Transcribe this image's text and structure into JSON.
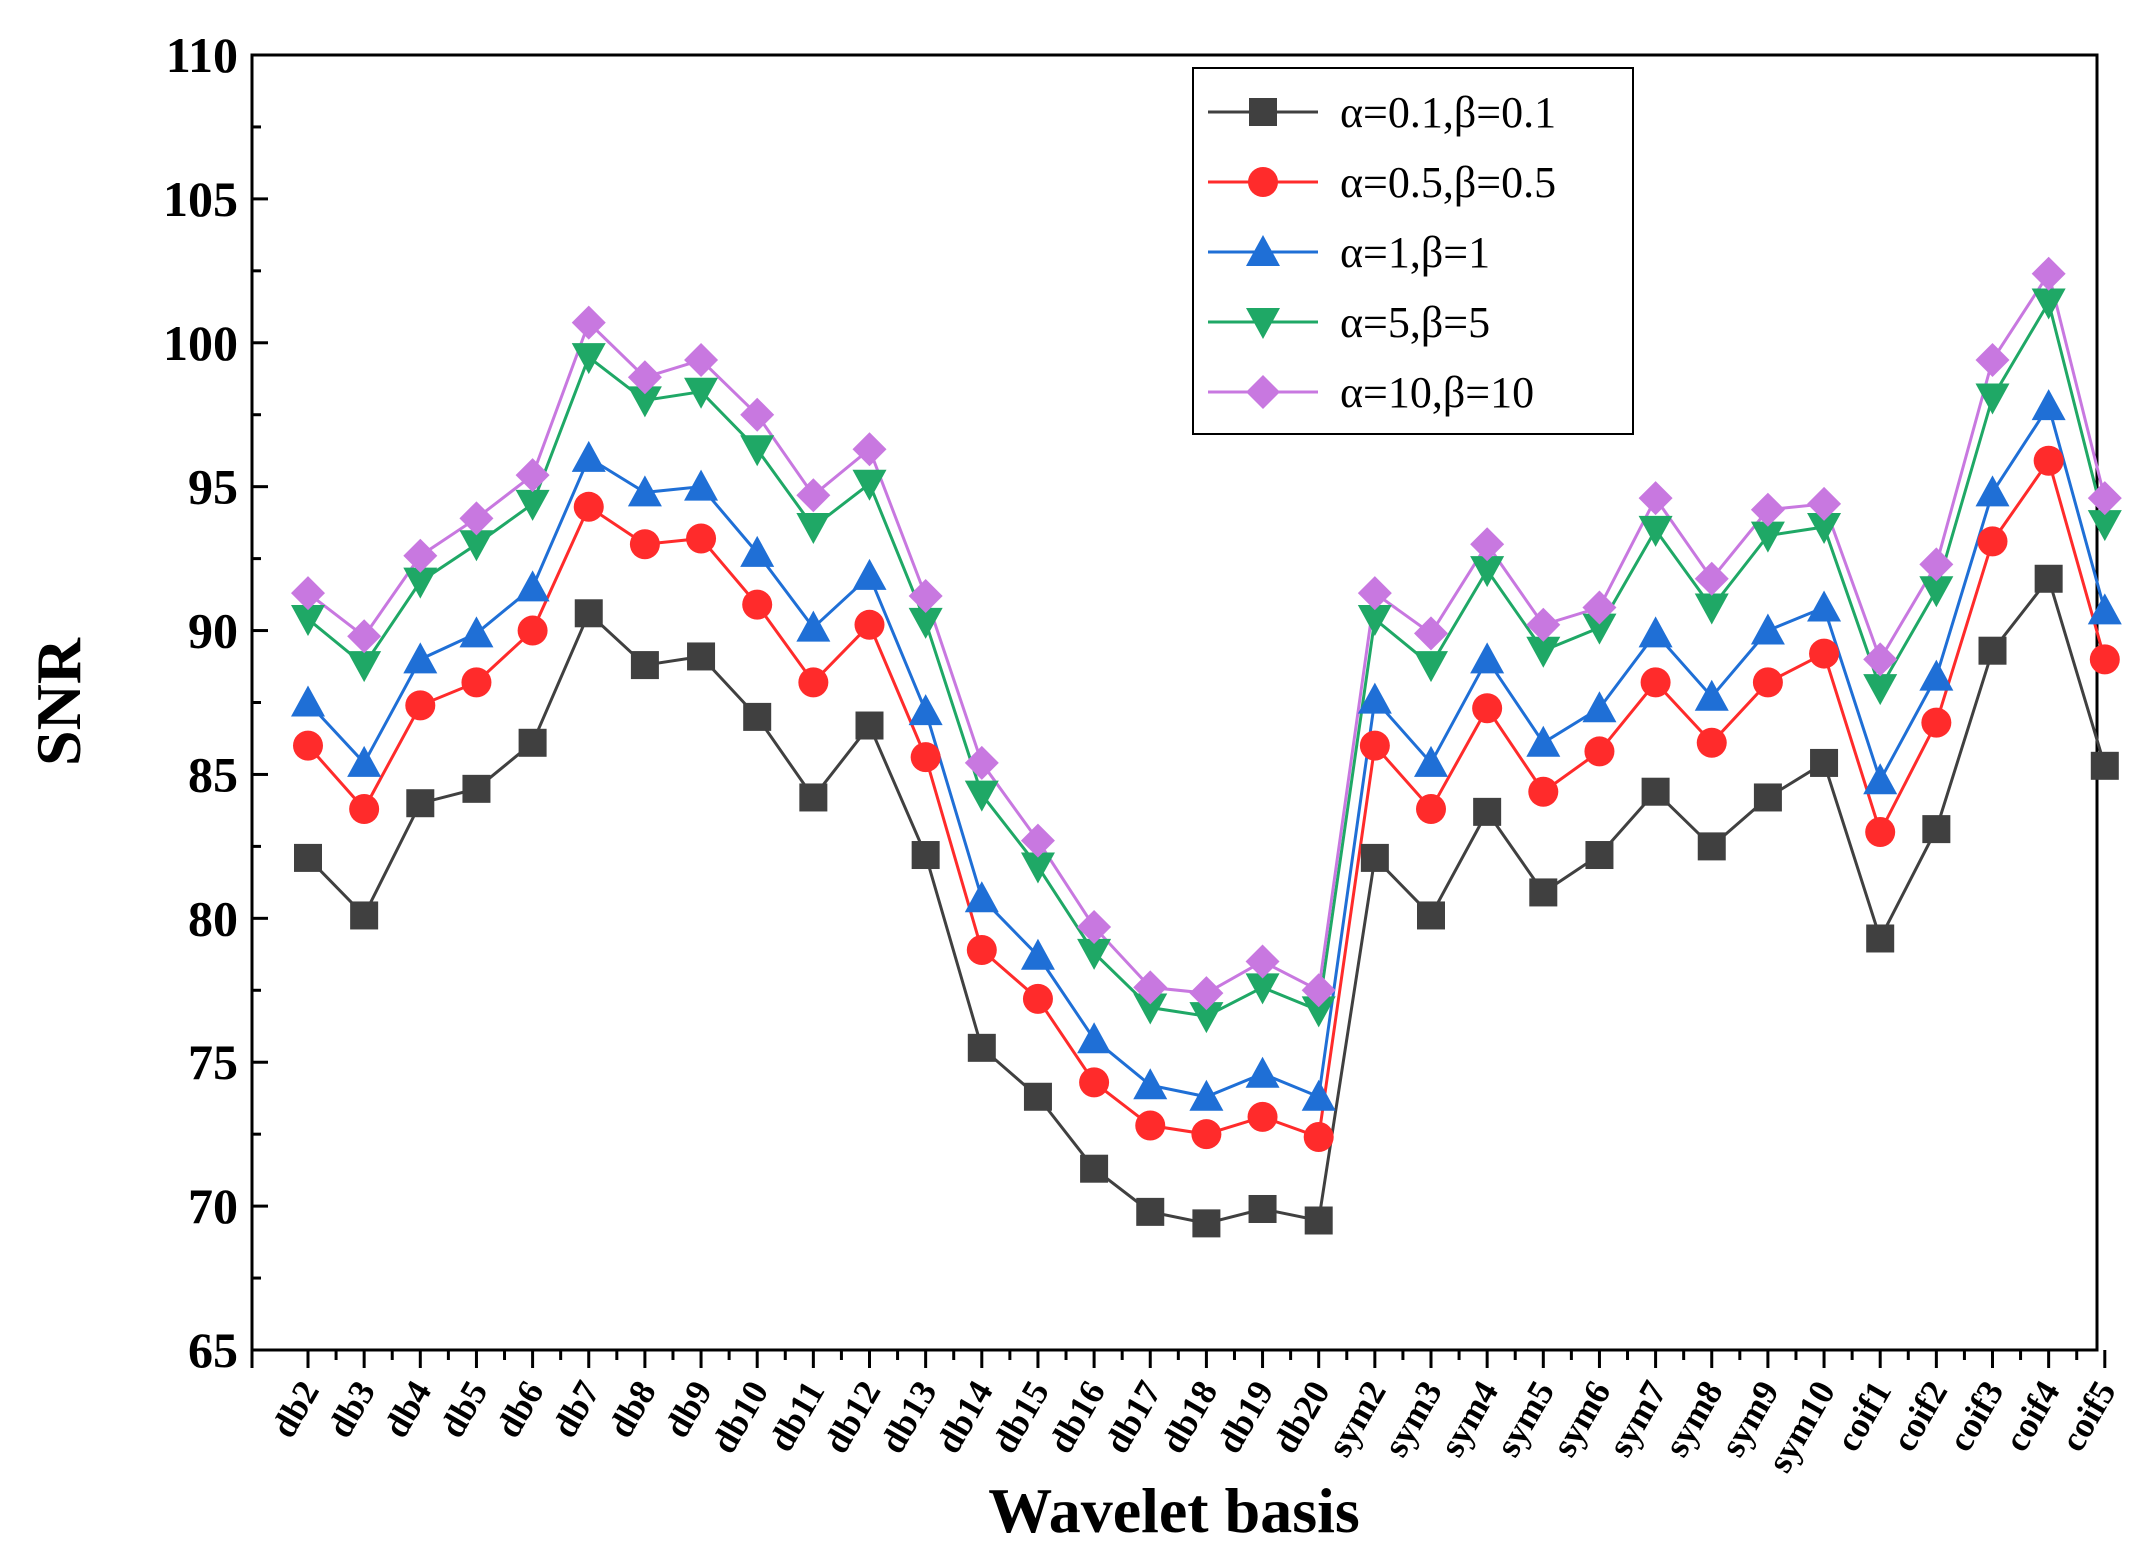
{
  "chart_data": {
    "type": "line",
    "title": "",
    "xlabel": "Wavelet basis",
    "ylabel": "SNR",
    "ylim": [
      65,
      110
    ],
    "yticks": [
      65,
      70,
      75,
      80,
      85,
      90,
      95,
      100,
      105,
      110
    ],
    "grid": false,
    "legend_position": "top-right",
    "categories": [
      "db2",
      "db3",
      "db4",
      "db5",
      "db6",
      "db7",
      "db8",
      "db9",
      "db10",
      "db11",
      "db12",
      "db13",
      "db14",
      "db15",
      "db16",
      "db17",
      "db18",
      "db19",
      "db20",
      "sym2",
      "sym3",
      "sym4",
      "sym5",
      "sym6",
      "sym7",
      "sym8",
      "sym9",
      "sym10",
      "coif1",
      "coif2",
      "coif3",
      "coif4",
      "coif5"
    ],
    "series": [
      {
        "name": "α=0.1,β=0.1",
        "color": "#404040",
        "marker": "square",
        "values": [
          82.1,
          80.1,
          84.0,
          84.5,
          86.1,
          90.6,
          88.8,
          89.1,
          87.0,
          84.2,
          86.7,
          82.2,
          75.5,
          73.8,
          71.3,
          69.8,
          69.4,
          69.9,
          69.5,
          82.1,
          80.1,
          83.7,
          80.9,
          82.2,
          84.4,
          82.5,
          84.2,
          85.4,
          79.3,
          83.1,
          89.3,
          91.8,
          85.3
        ]
      },
      {
        "name": "α=0.5,β=0.5",
        "color": "#ff2b2b",
        "marker": "circle",
        "values": [
          86.0,
          83.8,
          87.4,
          88.2,
          90.0,
          94.3,
          93.0,
          93.2,
          90.9,
          88.2,
          90.2,
          85.6,
          78.9,
          77.2,
          74.3,
          72.8,
          72.5,
          73.1,
          72.4,
          86.0,
          83.8,
          87.3,
          84.4,
          85.8,
          88.2,
          86.1,
          88.2,
          89.2,
          83.0,
          86.8,
          93.1,
          95.9,
          89.0
        ]
      },
      {
        "name": "α=1,β=1",
        "color": "#1f6fd6",
        "marker": "triangle-up",
        "values": [
          87.5,
          85.4,
          89.0,
          89.9,
          91.5,
          96.0,
          94.8,
          95.0,
          92.7,
          90.1,
          91.9,
          87.2,
          80.7,
          78.7,
          75.8,
          74.2,
          73.8,
          74.6,
          73.8,
          87.6,
          85.4,
          89.0,
          86.1,
          87.3,
          89.9,
          87.7,
          90.0,
          90.8,
          84.8,
          88.4,
          94.8,
          97.8,
          90.7
        ]
      },
      {
        "name": "α=5,β=5",
        "color": "#1fa866",
        "marker": "triangle-down",
        "values": [
          90.4,
          88.8,
          91.7,
          93.0,
          94.4,
          99.5,
          98.0,
          98.3,
          96.3,
          93.6,
          95.1,
          90.3,
          84.3,
          81.8,
          78.8,
          76.9,
          76.6,
          77.6,
          76.8,
          90.4,
          88.8,
          92.1,
          89.3,
          90.1,
          93.5,
          90.8,
          93.3,
          93.6,
          88.0,
          91.4,
          98.1,
          101.4,
          93.7
        ]
      },
      {
        "name": "α=10,β=10",
        "color": "#c878e0",
        "marker": "diamond",
        "values": [
          91.3,
          89.8,
          92.6,
          93.9,
          95.4,
          100.7,
          98.8,
          99.4,
          97.5,
          94.7,
          96.3,
          91.2,
          85.4,
          82.7,
          79.7,
          77.6,
          77.4,
          78.5,
          77.5,
          91.3,
          89.9,
          93.0,
          90.2,
          90.8,
          94.6,
          91.8,
          94.2,
          94.4,
          89.0,
          92.3,
          99.4,
          102.4,
          94.6
        ]
      }
    ]
  }
}
